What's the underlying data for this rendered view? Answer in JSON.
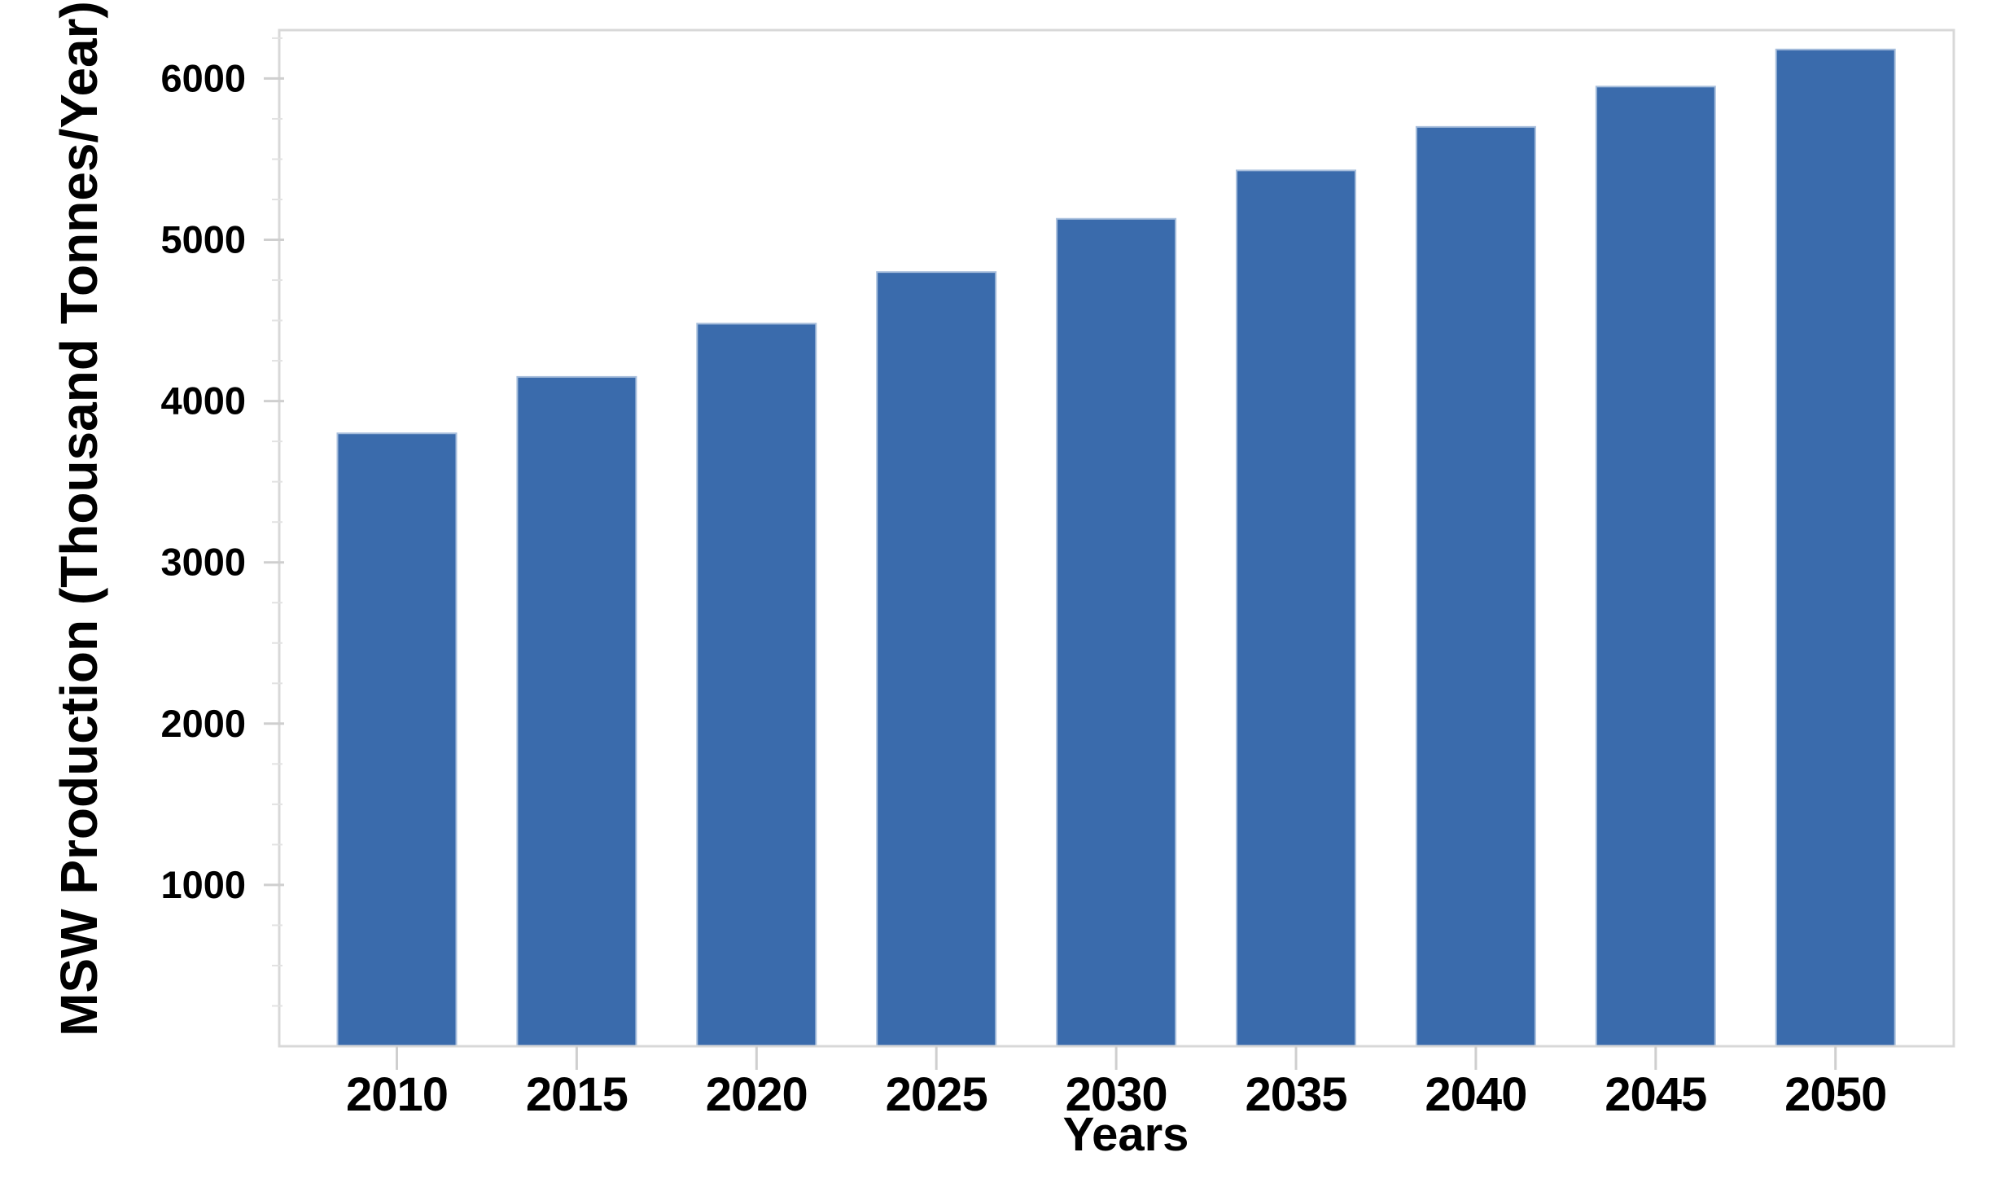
{
  "chart_data": {
    "type": "bar",
    "title": "",
    "xlabel": "Years",
    "ylabel": "MSW Production (Thousand Tonnes/Year)",
    "categories": [
      "2010",
      "2015",
      "2020",
      "2025",
      "2030",
      "2035",
      "2040",
      "2045",
      "2050"
    ],
    "values": [
      3800,
      4150,
      4480,
      4800,
      5130,
      5430,
      5700,
      5950,
      6180
    ],
    "series_name": "MSW Production (Thousand Tonnes/Year)",
    "ylim": [
      0,
      6300
    ],
    "yticks": [
      6000,
      5000,
      4000,
      3000,
      2000,
      1000
    ],
    "ytick_minor_interval": 250,
    "grid": false,
    "legend": false,
    "bar_count": 9,
    "colors": {
      "bar_fill": "#3A6BAC",
      "bar_edge": "#A7BEDC",
      "plot_border": "#D8D8D8",
      "tick_major": "#CFCFCF",
      "tick_minor": "#E2E2E2",
      "label_text": "#000000",
      "background": "#FFFFFF"
    }
  }
}
